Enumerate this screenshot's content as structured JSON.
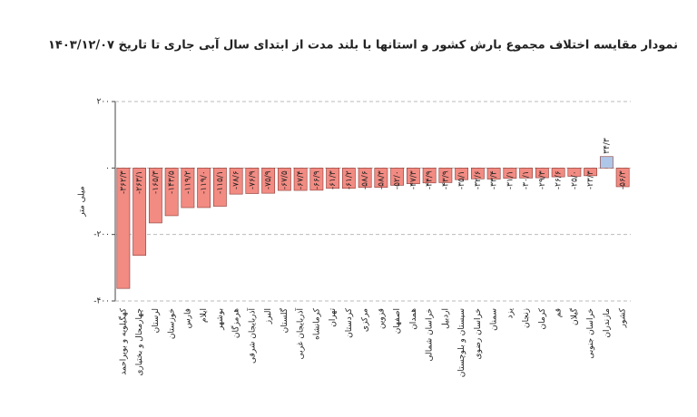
{
  "chart_data": {
    "type": "bar",
    "title": "نمودار مقایسه اختلاف مجموع بارش کشور و استانها با بلند مدت از ابتدای سال آبی جاری تا تاریخ ۱۴۰۳/۱۲/۰۷",
    "y_label": "میلی متر",
    "categories": [
      "کهگیلویه و بویراحمد",
      "چهارمحال و بختیاری",
      "لرستان",
      "خوزستان",
      "فارس",
      "ایلام",
      "بوشهر",
      "هرمزگان",
      "آذربایجان شرقی",
      "البرز",
      "گلستان",
      "آذربایجان غربی",
      "کرمانشاه",
      "تهران",
      "کردستان",
      "مرکزی",
      "قزوین",
      "اصفهان",
      "همدان",
      "خراسان شمالی",
      "اردبیل",
      "سیستان و بلوچستان",
      "خراسان رضوی",
      "سمنان",
      "یزد",
      "زنجان",
      "کرمان",
      "قم",
      "گیلان",
      "خراسان جنوبی",
      "مازندران",
      "کشور"
    ],
    "values": [
      -362.3,
      -263.1,
      -165.3,
      -143.5,
      -119.2,
      -119.0,
      -115.1,
      -78.6,
      -76.9,
      -75.9,
      -67.5,
      -67.4,
      -66.9,
      -61.3,
      -61.2,
      -58.6,
      -58.3,
      -52.0,
      -47.3,
      -44.9,
      -43.9,
      -35.1,
      -32.6,
      -33.4,
      -31.1,
      -30.1,
      -29.3,
      -26.6,
      -25.0,
      -23.3,
      34.3,
      -56.3
    ],
    "value_labels": [
      "-۳۶۲/۳",
      "-۲۶۳/۱",
      "-۱۶۵/۳",
      "-۱۴۳/۵",
      "-۱۱۹/۲",
      "-۱۱۹/۰",
      "-۱۱۵/۱",
      "-۷۸/۶",
      "-۷۶/۹",
      "-۷۵/۹",
      "-۶۷/۵",
      "-۶۷/۴",
      "-۶۶/۹",
      "-۶۱/۳",
      "-۶۱/۲",
      "-۵۸/۶",
      "-۵۸/۳",
      "-۵۲/۰",
      "-۴۷/۳",
      "-۴۴/۹",
      "-۴۳/۹",
      "-۳۵/۱",
      "-۳۲/۶",
      "-۳۳/۴",
      "-۳۱/۱",
      "-۳۰/۱",
      "-۲۹/۳",
      "-۲۶/۶",
      "-۲۵/۰",
      "-۲۳/۳",
      "۳۴/۳",
      "-۵۶/۳"
    ],
    "color": "#f28b82",
    "positive_color": "#aec7e8",
    "ylim": [
      -400,
      200
    ],
    "yticks": [
      {
        "value": -400,
        "label": "-۴۰۰"
      },
      {
        "value": -200,
        "label": "-۲۰۰"
      },
      {
        "value": 0,
        "label": "۰"
      },
      {
        "value": 200,
        "label": "۲۰۰"
      }
    ],
    "grid": true
  }
}
